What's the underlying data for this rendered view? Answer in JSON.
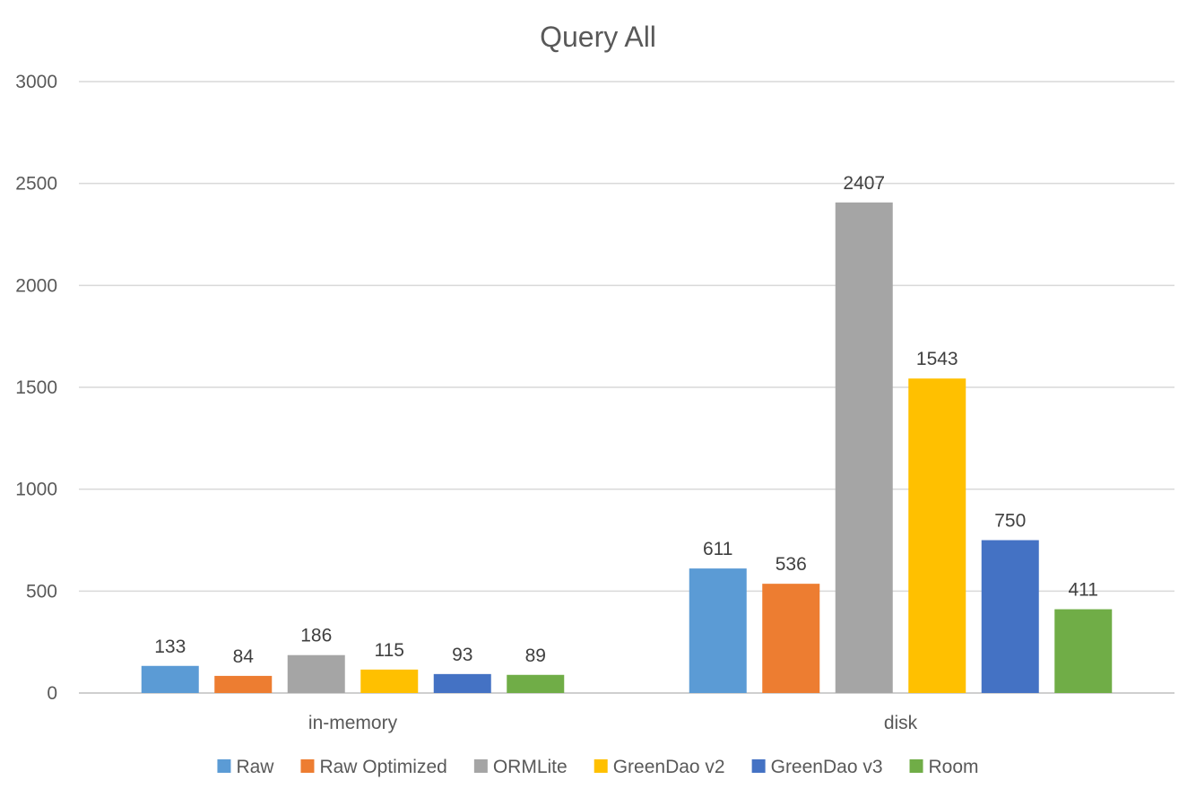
{
  "chart_data": {
    "type": "bar",
    "title": "Query All",
    "categories": [
      "in-memory",
      "disk"
    ],
    "series": [
      {
        "name": "Raw",
        "color": "#5b9bd5",
        "values": [
          133,
          611
        ]
      },
      {
        "name": "Raw Optimized",
        "color": "#ed7d31",
        "values": [
          84,
          536
        ]
      },
      {
        "name": "ORMLite",
        "color": "#a5a5a5",
        "values": [
          186,
          2407
        ]
      },
      {
        "name": "GreenDao v2",
        "color": "#ffc000",
        "values": [
          115,
          1543
        ]
      },
      {
        "name": "GreenDao v3",
        "color": "#4472c4",
        "values": [
          93,
          750
        ]
      },
      {
        "name": "Room",
        "color": "#70ad47",
        "values": [
          89,
          411
        ]
      }
    ],
    "y_ticks": [
      0,
      500,
      1000,
      1500,
      2000,
      2500,
      3000
    ],
    "ylim": [
      0,
      3000
    ],
    "grid": true,
    "legend_position": "bottom"
  }
}
